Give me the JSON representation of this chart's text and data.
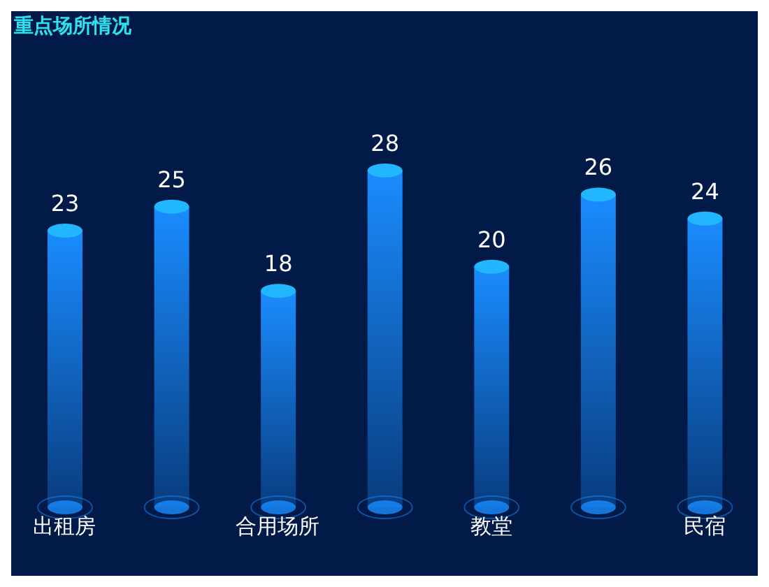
{
  "chart_data": {
    "type": "bar",
    "title": "重点场所情况",
    "categories": [
      "出租房",
      null,
      "合用场所",
      null,
      "教堂",
      null,
      "民宿"
    ],
    "values": [
      23,
      25,
      18,
      28,
      20,
      26,
      24
    ],
    "color": "#1a8cff",
    "data_labels": true,
    "grid": false,
    "legend": false
  }
}
